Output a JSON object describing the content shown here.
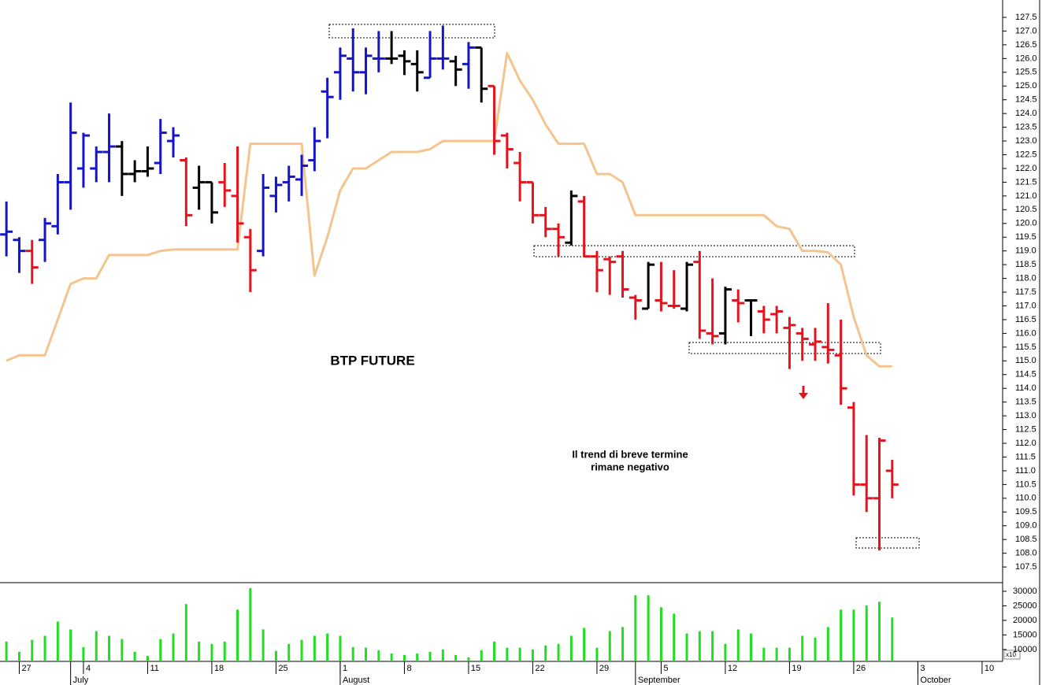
{
  "chart_data": [
    {
      "type": "ohlc",
      "title": "BTP FUTURE",
      "annotation": [
        "Il trend di breve termine",
        "rimane negativo"
      ],
      "annotation_color": "#e4141e",
      "x": [
        0,
        1,
        2,
        3,
        4,
        5,
        6,
        7,
        8,
        9,
        10,
        11,
        12,
        13,
        14,
        15,
        16,
        17,
        18,
        19,
        20,
        21,
        22,
        23,
        24,
        25,
        26,
        27,
        28,
        29,
        30,
        31,
        32,
        33,
        34,
        35,
        36,
        37,
        38,
        39,
        40,
        41,
        42,
        43,
        44,
        45,
        46,
        47,
        48,
        49,
        50,
        51,
        52,
        53,
        54,
        55,
        56,
        57,
        58,
        59,
        60,
        61,
        62,
        63,
        64,
        65,
        66,
        67,
        68,
        69
      ],
      "open": [
        119.6,
        119.4,
        119.0,
        119.4,
        119.9,
        121.5,
        122.0,
        122.0,
        122.6,
        122.8,
        121.8,
        121.9,
        122.2,
        123.0,
        122.3,
        121.3,
        121.5,
        121.5,
        121.0,
        119.5,
        119.0,
        121.0,
        121.5,
        121.6,
        122.3,
        124.8,
        125.5,
        126.0,
        125.5,
        126.0,
        126.0,
        126.1,
        125.8,
        125.3,
        126.0,
        125.9,
        125.8,
        126.4,
        125.0,
        123.2,
        122.2,
        121.5,
        120.3,
        119.8,
        119.3,
        120.8,
        118.8,
        118.7,
        118.8,
        117.3,
        116.9,
        117.2,
        117.0,
        116.9,
        118.6,
        116.0,
        116.0,
        117.2,
        117.2,
        116.8,
        116.7,
        116.2,
        116.0,
        115.6,
        115.5,
        115.2,
        113.3,
        110.5,
        110.0,
        111.0
      ],
      "high": [
        120.8,
        119.5,
        119.4,
        120.2,
        121.8,
        124.4,
        123.3,
        122.8,
        124.0,
        123.0,
        122.3,
        122.8,
        123.8,
        123.5,
        122.4,
        122.1,
        121.5,
        122.2,
        122.8,
        119.8,
        121.8,
        121.7,
        122.1,
        122.5,
        123.5,
        125.3,
        126.4,
        127.1,
        126.4,
        127.0,
        127.0,
        126.3,
        126.3,
        127.0,
        127.2,
        126.1,
        126.6,
        126.4,
        125.0,
        123.3,
        122.6,
        121.5,
        120.6,
        120.0,
        121.2,
        121.0,
        119.0,
        118.8,
        119.0,
        117.4,
        118.6,
        118.6,
        118.3,
        118.6,
        119.0,
        118.0,
        117.7,
        117.6,
        117.2,
        117.0,
        117.0,
        116.6,
        116.2,
        116.2,
        117.1,
        116.5,
        113.5,
        112.3,
        112.2,
        111.4
      ],
      "low": [
        118.8,
        118.2,
        117.8,
        118.6,
        119.6,
        120.5,
        121.3,
        121.5,
        121.5,
        121.0,
        121.5,
        121.7,
        121.8,
        122.4,
        119.9,
        120.5,
        120.0,
        120.6,
        119.3,
        117.5,
        118.8,
        120.4,
        120.8,
        121.0,
        121.9,
        123.1,
        124.5,
        124.8,
        124.7,
        125.5,
        125.8,
        125.4,
        124.8,
        125.3,
        125.6,
        125.0,
        124.9,
        124.4,
        122.5,
        122.0,
        120.8,
        120.0,
        119.5,
        118.8,
        119.2,
        118.8,
        117.5,
        117.4,
        117.3,
        116.5,
        116.9,
        116.8,
        116.9,
        116.8,
        115.8,
        115.6,
        115.6,
        116.4,
        115.9,
        116.0,
        116.0,
        114.7,
        115.0,
        115.0,
        114.9,
        113.4,
        110.1,
        109.5,
        108.1,
        110.0
      ],
      "close": [
        119.7,
        119.0,
        118.4,
        120.0,
        121.5,
        123.3,
        123.2,
        122.6,
        122.8,
        121.8,
        121.9,
        122.0,
        123.3,
        123.2,
        120.3,
        121.5,
        120.4,
        121.2,
        120.0,
        118.3,
        121.3,
        121.4,
        121.7,
        122.1,
        123.0,
        124.6,
        126.1,
        125.5,
        126.1,
        126.0,
        126.0,
        125.9,
        125.5,
        126.0,
        126.0,
        125.6,
        126.4,
        124.9,
        123.0,
        122.7,
        121.5,
        120.3,
        119.8,
        119.5,
        121.0,
        118.8,
        118.3,
        118.6,
        117.6,
        117.2,
        118.5,
        117.1,
        117.0,
        118.5,
        116.1,
        115.9,
        117.6,
        117.1,
        117.2,
        116.5,
        116.8,
        116.3,
        115.8,
        115.7,
        115.4,
        114.0,
        110.5,
        110.0,
        112.1,
        110.5
      ],
      "colors": [
        "#1414c8",
        "#1414c8",
        "#e4141e",
        "#1414c8",
        "#1414c8",
        "#1414c8",
        "#1414c8",
        "#1414c8",
        "#1414c8",
        "#000000",
        "#000000",
        "#000000",
        "#1414c8",
        "#1414c8",
        "#e4141e",
        "#000000",
        "#000000",
        "#e4141e",
        "#e4141e",
        "#e4141e",
        "#1414c8",
        "#1414c8",
        "#1414c8",
        "#1414c8",
        "#1414c8",
        "#1414c8",
        "#1414c8",
        "#1414c8",
        "#1414c8",
        "#1414c8",
        "#000000",
        "#000000",
        "#000000",
        "#1414c8",
        "#1414c8",
        "#000000",
        "#1414c8",
        "#000000",
        "#e4141e",
        "#e4141e",
        "#e4141e",
        "#e4141e",
        "#e4141e",
        "#e4141e",
        "#000000",
        "#e4141e",
        "#e4141e",
        "#e4141e",
        "#e4141e",
        "#e4141e",
        "#000000",
        "#e4141e",
        "#e4141e",
        "#000000",
        "#e4141e",
        "#e4141e",
        "#000000",
        "#e4141e",
        "#000000",
        "#e4141e",
        "#e4141e",
        "#e4141e",
        "#e4141e",
        "#e4141e",
        "#e4141e",
        "#e4141e",
        "#e4141e",
        "#e4141e",
        "#e4141e",
        "#e4141e"
      ],
      "overlay": {
        "color": "#f5c48e",
        "values": [
          115.0,
          115.2,
          115.2,
          115.2,
          116.5,
          117.8,
          118.0,
          118.0,
          118.85,
          118.85,
          118.85,
          118.85,
          119.0,
          119.05,
          119.05,
          119.05,
          119.05,
          119.05,
          119.05,
          122.9,
          122.9,
          122.9,
          122.9,
          122.9,
          118.1,
          119.5,
          121.2,
          122.0,
          122.0,
          122.3,
          122.6,
          122.6,
          122.6,
          122.7,
          123.0,
          123.0,
          123.0,
          123.0,
          123.0,
          126.2,
          125.2,
          124.5,
          123.6,
          122.9,
          122.9,
          122.9,
          121.8,
          121.8,
          121.5,
          120.3,
          120.3,
          120.3,
          120.3,
          120.3,
          120.3,
          120.3,
          120.3,
          120.3,
          120.3,
          120.3,
          119.9,
          119.8,
          119.0,
          119.0,
          118.95,
          118.5,
          116.6,
          115.2,
          114.8,
          114.8
        ]
      },
      "xlim": [
        -0.5,
        77.6
      ],
      "ylim": [
        106.93,
        128.13
      ],
      "yticks": [
        107.5,
        {
          "value": 108,
          "label": "108.0"
        },
        108.5,
        {
          "value": 109,
          "label": "109.0"
        },
        109.5,
        {
          "value": 110,
          "label": "110.0"
        },
        110.5,
        {
          "value": 111,
          "label": "111.0"
        },
        111.5,
        {
          "value": 112,
          "label": "112.0"
        },
        112.5,
        {
          "value": 113,
          "label": "113.0"
        },
        113.5,
        {
          "value": 114,
          "label": "114.0"
        },
        114.5,
        {
          "value": 115,
          "label": "115.0"
        },
        115.5,
        {
          "value": 116,
          "label": "116.0"
        },
        116.5,
        {
          "value": 117,
          "label": "117.0"
        },
        117.5,
        {
          "value": 118,
          "label": "118.0"
        },
        118.5,
        {
          "value": 119,
          "label": "119.0"
        },
        119.5,
        {
          "value": 120,
          "label": "120.0"
        },
        120.5,
        {
          "value": 121,
          "label": "121.0"
        },
        121.5,
        {
          "value": 122,
          "label": "122.0"
        },
        122.5,
        {
          "value": 123,
          "label": "123.0"
        },
        123.5,
        {
          "value": 124,
          "label": "124.0"
        },
        124.5,
        {
          "value": 125,
          "label": "125.0"
        },
        125.5,
        {
          "value": 126,
          "label": "126.0"
        },
        126.5,
        {
          "value": 127,
          "label": "127.0"
        },
        127.5
      ]
    },
    {
      "type": "bar",
      "color": "#22dd22",
      "unit_label": "x10",
      "x": [
        0,
        1,
        2,
        3,
        4,
        5,
        6,
        7,
        8,
        9,
        10,
        11,
        12,
        13,
        14,
        15,
        16,
        17,
        18,
        19,
        20,
        21,
        22,
        23,
        24,
        25,
        26,
        27,
        28,
        29,
        30,
        31,
        32,
        33,
        34,
        35,
        36,
        37,
        38,
        39,
        40,
        41,
        42,
        43,
        44,
        45,
        46,
        47,
        48,
        49,
        50,
        51,
        52,
        53,
        54,
        55,
        56,
        57,
        58,
        59,
        60,
        61,
        62,
        63,
        64,
        65,
        66,
        67,
        68,
        69
      ],
      "values": [
        12700,
        9200,
        13300,
        14700,
        19600,
        16900,
        10800,
        16300,
        14700,
        13600,
        9200,
        7800,
        13600,
        15500,
        25600,
        12700,
        11900,
        12700,
        23700,
        31100,
        16900,
        9500,
        11900,
        13300,
        14700,
        15500,
        14700,
        10800,
        10600,
        9700,
        8600,
        8100,
        8600,
        9200,
        10000,
        8100,
        7300,
        9700,
        12700,
        10600,
        10600,
        10000,
        11400,
        11900,
        14700,
        17400,
        10600,
        16300,
        17700,
        28600,
        28600,
        24500,
        22300,
        15500,
        16300,
        16300,
        11900,
        16900,
        15500,
        10600,
        10600,
        10600,
        14700,
        14100,
        17700,
        23700,
        23700,
        25100,
        26400,
        21000
      ],
      "xlim": [
        -0.5,
        77.6
      ],
      "ylim": [
        5900,
        32700
      ],
      "yticks": [
        10000,
        15000,
        20000,
        25000,
        30000
      ],
      "xticks": [
        {
          "value": 1,
          "label": "27"
        },
        {
          "value": 6,
          "label": "4"
        },
        {
          "value": 11,
          "label": "11"
        },
        {
          "value": 16,
          "label": "18"
        },
        {
          "value": 21,
          "label": "25"
        },
        {
          "value": 26,
          "label": "1"
        },
        {
          "value": 31,
          "label": "8"
        },
        {
          "value": 36,
          "label": "15"
        },
        {
          "value": 41,
          "label": "22"
        },
        {
          "value": 46,
          "label": "29"
        },
        {
          "value": 51,
          "label": "5"
        },
        {
          "value": 56,
          "label": "12"
        },
        {
          "value": 61,
          "label": "19"
        },
        {
          "value": 66,
          "label": "26"
        },
        {
          "value": 71,
          "label": "3"
        },
        {
          "value": 76,
          "label": "10"
        }
      ],
      "month_ticks": [
        {
          "value": 5,
          "label": "July"
        },
        {
          "value": 26,
          "label": "August"
        },
        {
          "value": 49,
          "label": "September"
        },
        {
          "value": 71,
          "label": "October"
        }
      ]
    }
  ]
}
